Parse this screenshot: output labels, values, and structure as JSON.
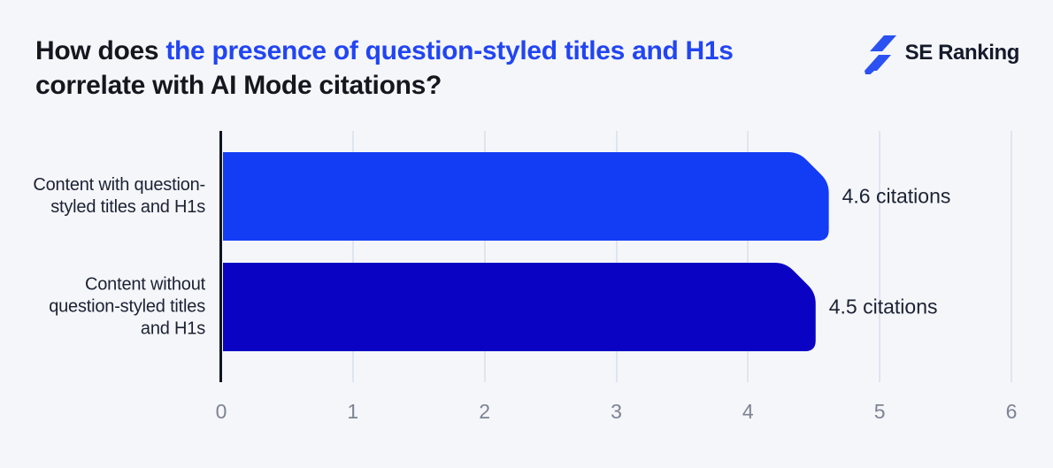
{
  "header": {
    "title": {
      "prefix": "How does ",
      "highlight": "the presence of question-styled titles and H1s",
      "suffix": " correlate with AI Mode citations?"
    },
    "logo": {
      "brand": "SE Ranking",
      "icon": "lightning-bolt-icon"
    }
  },
  "colors": {
    "background": "#F5F6FA",
    "title_text": "#15171F",
    "title_highlight": "#2245F2",
    "bar_primary": "#133CF5",
    "bar_secondary": "#0B03C4",
    "brand_navy": "#151A2C",
    "brand_blue": "#2B51F2",
    "axis_line": "#0F1523",
    "gridline": "#DFE5EF",
    "tick_text": "#7C8393",
    "label_text": "#1B2234"
  },
  "chart_data": {
    "type": "bar",
    "orientation": "horizontal",
    "title": "How does the presence of question-styled titles and H1s correlate with AI Mode citations?",
    "categories": [
      "Content with question-styled titles and H1s",
      "Content without question-styled titles and H1s"
    ],
    "values": [
      4.6,
      4.5
    ],
    "value_labels": [
      "4.6 citations",
      "4.5 citations"
    ],
    "bar_colors": [
      "#133CF5",
      "#0B03C4"
    ],
    "xlabel": "",
    "ylabel": "",
    "xlim": [
      0,
      6
    ],
    "xticks": [
      0,
      1,
      2,
      3,
      4,
      5,
      6
    ],
    "grid": "vertical",
    "legend": "none"
  }
}
